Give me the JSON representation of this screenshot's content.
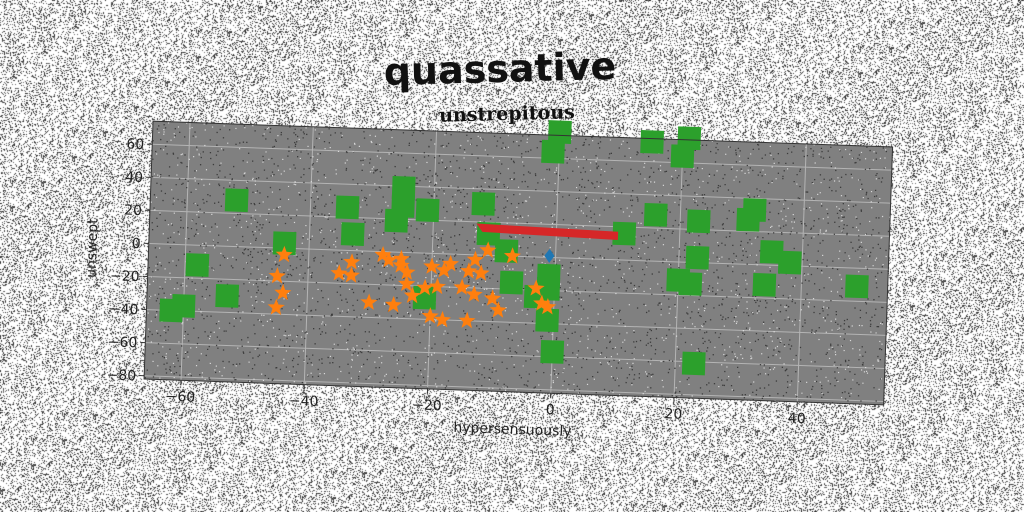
{
  "chart_data": {
    "type": "scatter",
    "suptitle": "quassative",
    "title": "unstrepitous",
    "xlabel": "hypersensuously",
    "ylabel": "unswept",
    "xlim": [
      -66,
      54
    ],
    "ylim": [
      -82,
      74
    ],
    "xticks": [
      -60,
      -40,
      -20,
      0,
      20,
      40
    ],
    "xtick_labels": [
      "−60",
      "−40",
      "−20",
      "0",
      "20",
      "40"
    ],
    "yticks": [
      -80,
      -60,
      -40,
      -20,
      0,
      20,
      40,
      60
    ],
    "ytick_labels": [
      "−80",
      "−60",
      "−40",
      "−20",
      "0",
      "20",
      "40",
      "60"
    ],
    "grid": true,
    "colors": {
      "plot_background": "#808080",
      "grid": "#b4b4b4",
      "squares": "#2ca02c",
      "stars": "#ff7f0e",
      "triangle": "#d62728",
      "diamond": "#1f77b4"
    },
    "series": [
      {
        "marker": "square",
        "color": "#2ca02c",
        "x": [
          0,
          -1,
          15,
          21,
          20,
          -12,
          -25,
          -34,
          -52,
          -25,
          -21,
          -26,
          -33,
          -44,
          -58,
          -62,
          -60,
          -53,
          -8,
          -7,
          -1,
          -1,
          -3,
          -1,
          -21,
          11,
          -11,
          16,
          23,
          31,
          32,
          35,
          23,
          38,
          20,
          22,
          34,
          49,
          0,
          23
        ],
        "y": [
          76,
          64,
          72,
          75,
          64,
          31,
          39,
          26,
          28,
          28,
          26,
          19,
          10,
          3,
          -12,
          -40,
          -37,
          -30,
          3,
          -16,
          -11,
          -19,
          -24,
          -38,
          -27,
          16,
          13,
          28,
          25,
          27,
          33,
          8,
          3,
          2,
          -11,
          -13,
          -12,
          -11,
          -57,
          -61
        ]
      },
      {
        "marker": "star",
        "color": "#ff7f0e",
        "x": [
          -44,
          -45,
          -44,
          -45,
          -35,
          -33,
          -33,
          -28,
          -27,
          -25,
          -25,
          -24,
          -24,
          -23,
          -21,
          -19,
          -20,
          -18,
          -17,
          -15,
          -14,
          -13,
          -12,
          -13,
          -11,
          -10,
          -7,
          -3,
          -2,
          -1,
          -9,
          -30,
          -26,
          -20,
          -18,
          -14
        ],
        "y": [
          -4,
          -17,
          -27,
          -36,
          -14,
          -15,
          -7,
          -2,
          -5,
          -4,
          -8,
          -12,
          -19,
          -26,
          -21,
          -20,
          -8,
          -10,
          -6,
          -20,
          -10,
          -24,
          -11,
          -3,
          3,
          -26,
          0,
          -19,
          -28,
          -30,
          -33,
          -31,
          -32,
          -38,
          -40,
          -40
        ]
      },
      {
        "marker": "triangle",
        "color": "#d62728",
        "points": [
          [
            -13,
            19
          ],
          [
            -12,
            14
          ],
          [
            10,
            12
          ],
          [
            10,
            17
          ]
        ]
      },
      {
        "marker": "diamond",
        "color": "#1f77b4",
        "x": [
          -1
        ],
        "y": [
          1
        ]
      }
    ]
  }
}
